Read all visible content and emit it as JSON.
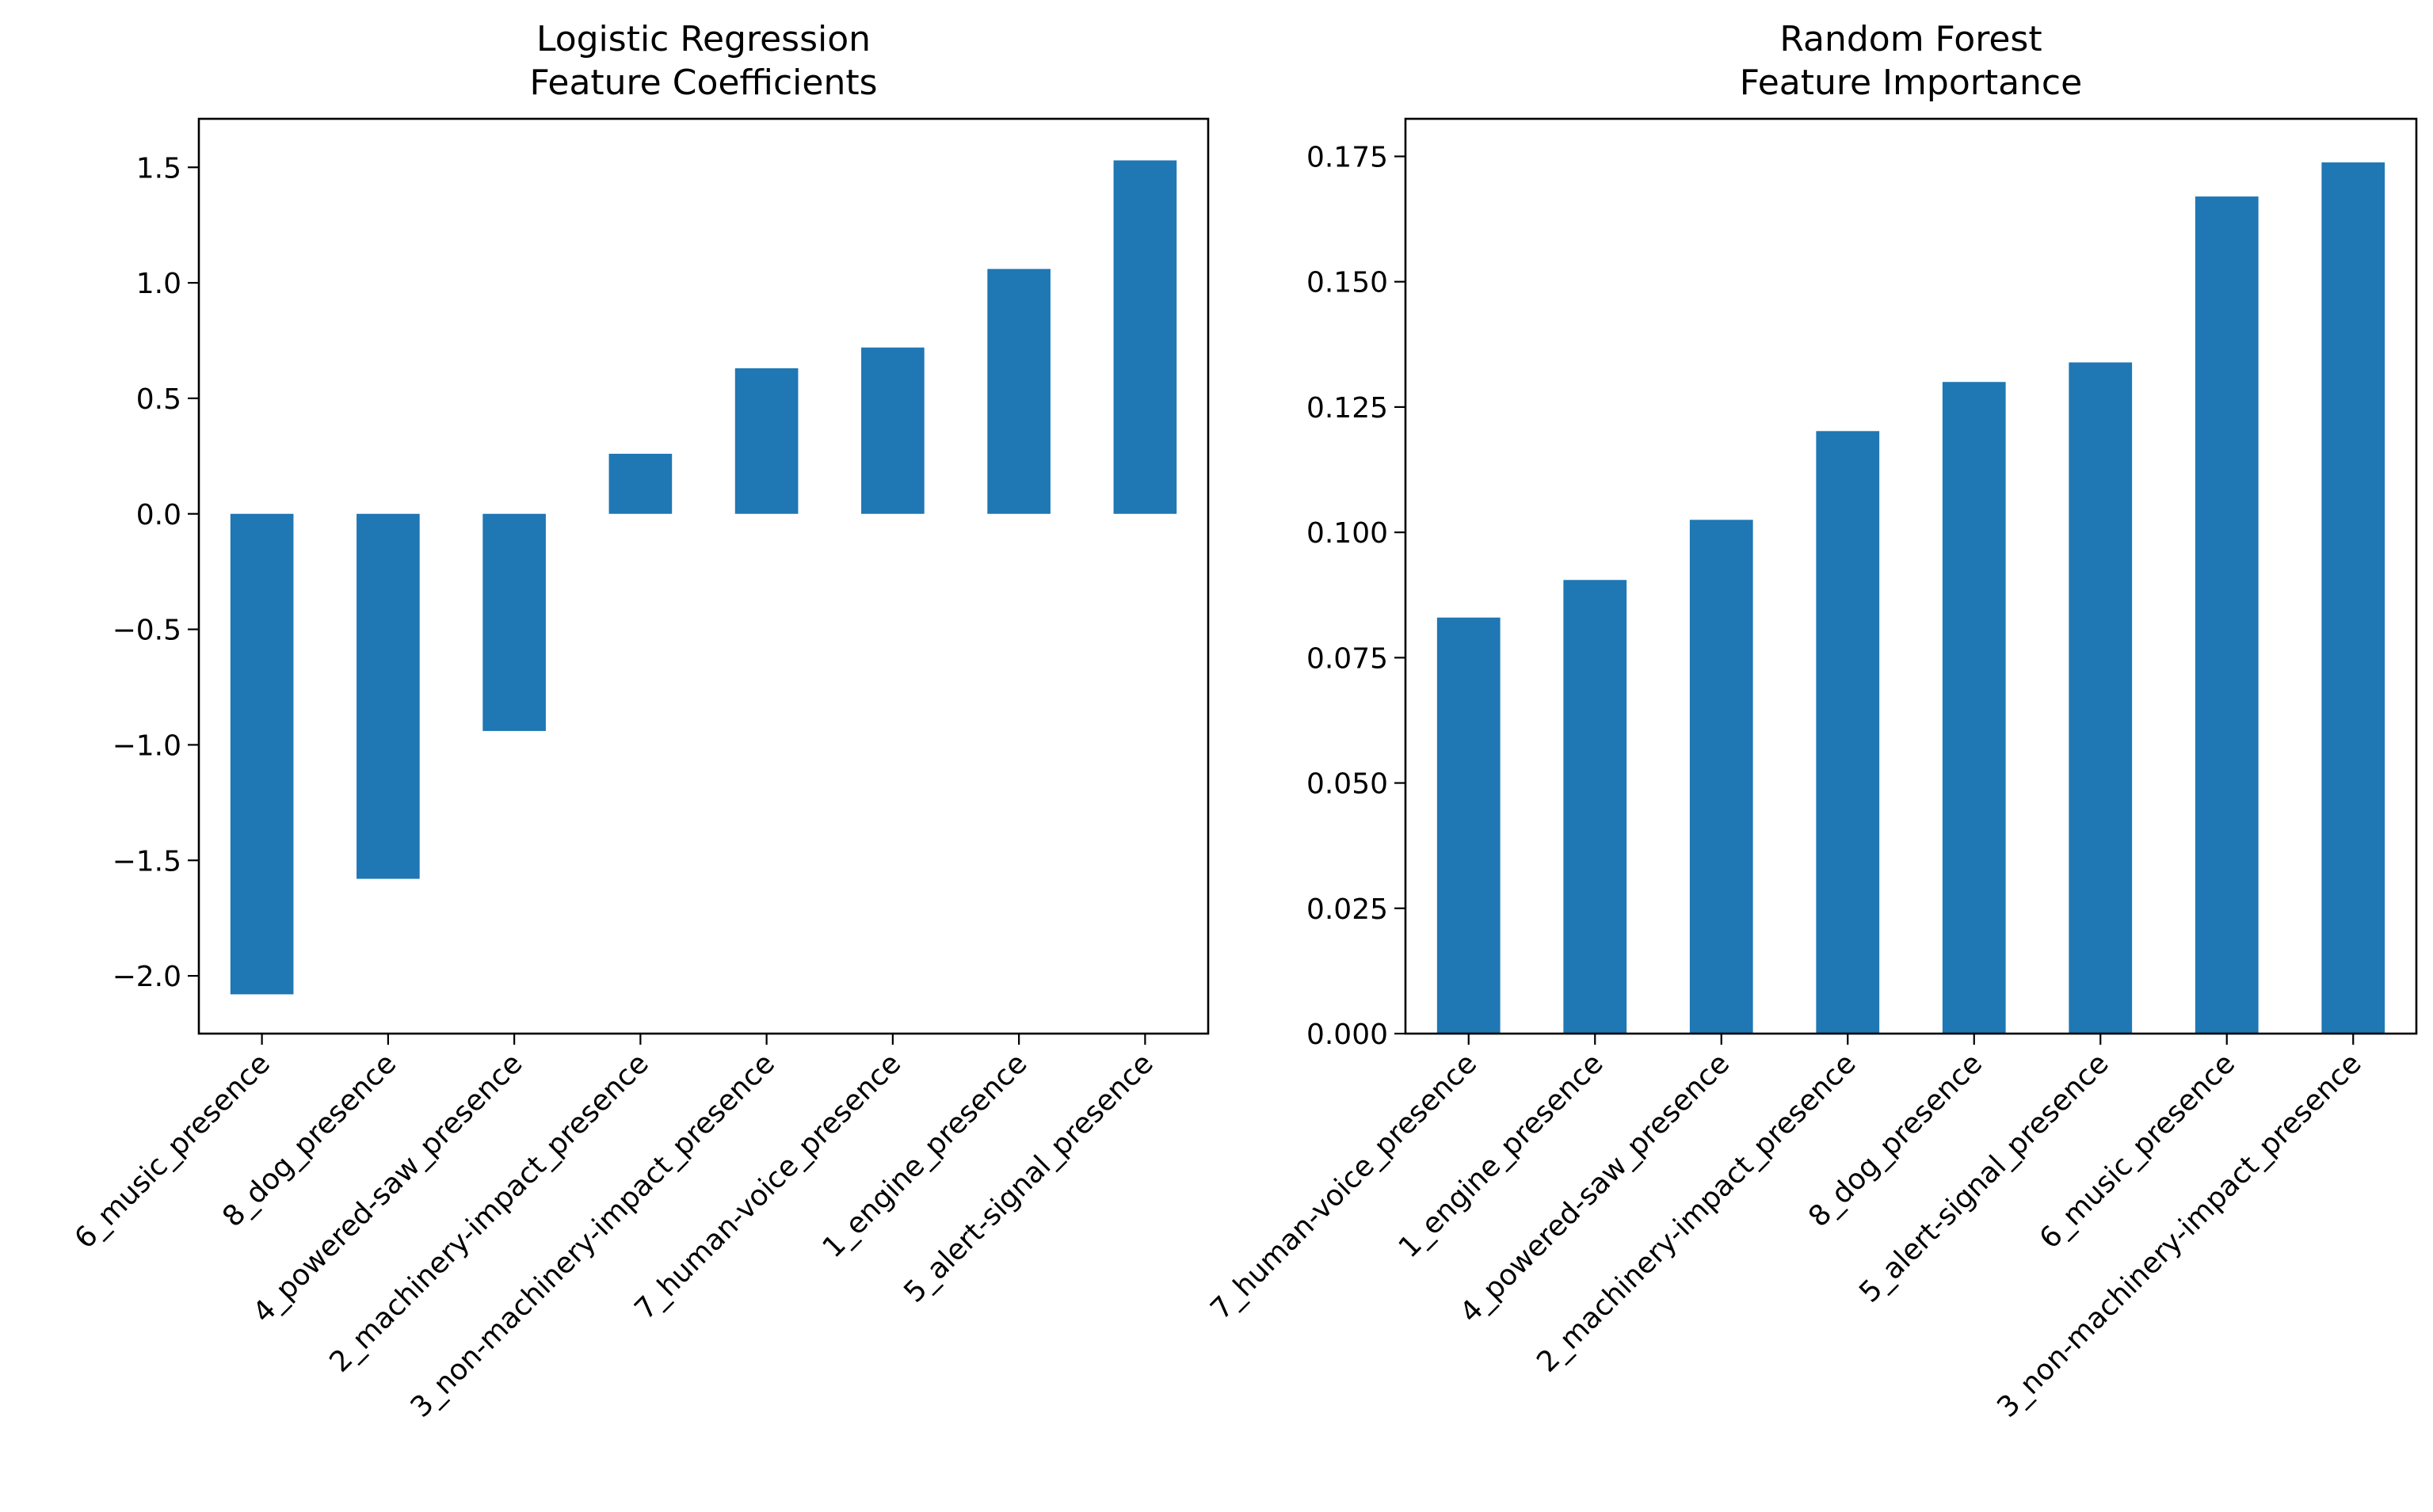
{
  "colors": {
    "bar": "#1f77b4"
  },
  "chart_data": [
    {
      "type": "bar",
      "title": "Logistic Regression",
      "subtitle": "Feature Coefficients",
      "categories": [
        "6_music_presence",
        "8_dog_presence",
        "4_powered-saw_presence",
        "2_machinery-impact_presence",
        "3_non-machinery-impact_presence",
        "7_human-voice_presence",
        "1_engine_presence",
        "5_alert-signal_presence"
      ],
      "values": [
        -2.08,
        -1.58,
        -0.94,
        0.26,
        0.63,
        0.72,
        1.06,
        1.53
      ],
      "ylim": [
        -2.25,
        1.71
      ],
      "yticks": [
        -2.0,
        -1.5,
        -1.0,
        -0.5,
        0.0,
        0.5,
        1.0,
        1.5
      ],
      "ytick_labels": [
        "−2.0",
        "−1.5",
        "−1.0",
        "−0.5",
        "0.0",
        "0.5",
        "1.0",
        "1.5"
      ],
      "grid": false,
      "legend": "none"
    },
    {
      "type": "bar",
      "title": "Random Forest",
      "subtitle": "Feature Importance",
      "categories": [
        "7_human-voice_presence",
        "1_engine_presence",
        "4_powered-saw_presence",
        "2_machinery-impact_presence",
        "8_dog_presence",
        "5_alert-signal_presence",
        "6_music_presence",
        "3_non-machinery-impact_presence"
      ],
      "values": [
        0.083,
        0.0905,
        0.1025,
        0.1202,
        0.13,
        0.1339,
        0.167,
        0.1738
      ],
      "ylim": [
        0,
        0.1825
      ],
      "yticks": [
        0.0,
        0.025,
        0.05,
        0.075,
        0.1,
        0.125,
        0.15,
        0.175
      ],
      "ytick_labels": [
        "0.000",
        "0.025",
        "0.050",
        "0.075",
        "0.100",
        "0.125",
        "0.150",
        "0.175"
      ],
      "grid": false,
      "legend": "none"
    }
  ]
}
